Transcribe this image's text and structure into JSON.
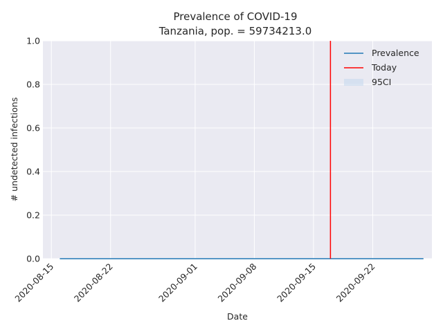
{
  "chart_data": {
    "type": "line",
    "title": "Prevalence of COVID-19",
    "subtitle": "Tanzania, pop. = 59734213.0",
    "xlabel": "Date",
    "ylabel": "# undetected infections",
    "x_range": [
      "2020-08-14",
      "2020-09-29"
    ],
    "ylim": [
      0,
      1
    ],
    "x_ticks": [
      "2020-08-15",
      "2020-08-22",
      "2020-09-01",
      "2020-09-08",
      "2020-09-15",
      "2020-09-22"
    ],
    "y_ticks": [
      "0.0",
      "0.2",
      "0.4",
      "0.6",
      "0.8",
      "1.0"
    ],
    "y_tick_values": [
      0,
      0.2,
      0.4,
      0.6,
      0.8,
      1.0
    ],
    "series": [
      {
        "name": "Prevalence",
        "color": "#1f77b4",
        "x": [
          "2020-08-16",
          "2020-09-28"
        ],
        "values": [
          0,
          0
        ]
      }
    ],
    "today": {
      "name": "Today",
      "date": "2020-09-17",
      "color": "#ff0000"
    },
    "ci": {
      "name": "95CI",
      "color": "#c6d9ee"
    },
    "grid": true,
    "legend_position": "top-right",
    "background": "#eaeaf2"
  }
}
